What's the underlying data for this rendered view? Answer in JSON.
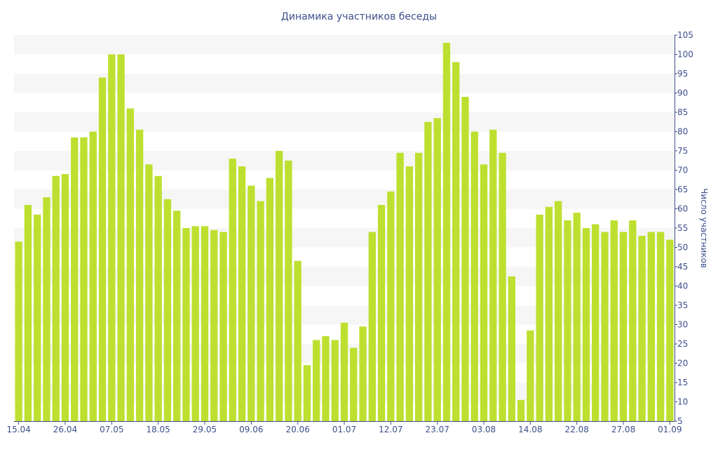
{
  "chart_data": {
    "type": "bar",
    "title": "Динамика участников беседы",
    "xlabel": "",
    "ylabel": "Число участников",
    "ylim": [
      5,
      105
    ],
    "y_ticks": [
      5,
      10,
      15,
      20,
      25,
      30,
      35,
      40,
      45,
      50,
      55,
      60,
      65,
      70,
      75,
      80,
      85,
      90,
      95,
      100,
      105
    ],
    "y_axis_side": "right",
    "grid": "alternating horizontal bands",
    "x_tick_labels": [
      {
        "index": 0,
        "label": "15.04"
      },
      {
        "index": 5,
        "label": "26.04"
      },
      {
        "index": 10,
        "label": "07.05"
      },
      {
        "index": 15,
        "label": "18.05"
      },
      {
        "index": 20,
        "label": "29.05"
      },
      {
        "index": 25,
        "label": "09.06"
      },
      {
        "index": 30,
        "label": "20.06"
      },
      {
        "index": 35,
        "label": "01.07"
      },
      {
        "index": 40,
        "label": "12.07"
      },
      {
        "index": 45,
        "label": "23.07"
      },
      {
        "index": 50,
        "label": "03.08"
      },
      {
        "index": 55,
        "label": "14.08"
      },
      {
        "index": 60,
        "label": "22.08"
      },
      {
        "index": 65,
        "label": "27.08"
      },
      {
        "index": 70,
        "label": "01.09"
      }
    ],
    "values": [
      51.5,
      61,
      58.5,
      63,
      68.5,
      69,
      78.5,
      78.5,
      80,
      94,
      100,
      100,
      86,
      80.5,
      71.5,
      68.5,
      62.5,
      59.5,
      55,
      55.5,
      55.5,
      54.5,
      54,
      73,
      71,
      66,
      62,
      68,
      75,
      72.5,
      46.5,
      19.5,
      26,
      27,
      26,
      30.5,
      24,
      29.5,
      54,
      61,
      64.5,
      74.5,
      71,
      74.5,
      82.5,
      83.5,
      103,
      98,
      89,
      80,
      71.5,
      80.5,
      74.5,
      42.5,
      10.5,
      28.5,
      58.5,
      60.5,
      62,
      57,
      59,
      55,
      56,
      54,
      57,
      54,
      57,
      53,
      54,
      54,
      52
    ],
    "colors": {
      "bar": "#bde030",
      "band": "#f6f6f6",
      "text": "#3d4f8c",
      "axis": "#3d4f8c"
    }
  }
}
